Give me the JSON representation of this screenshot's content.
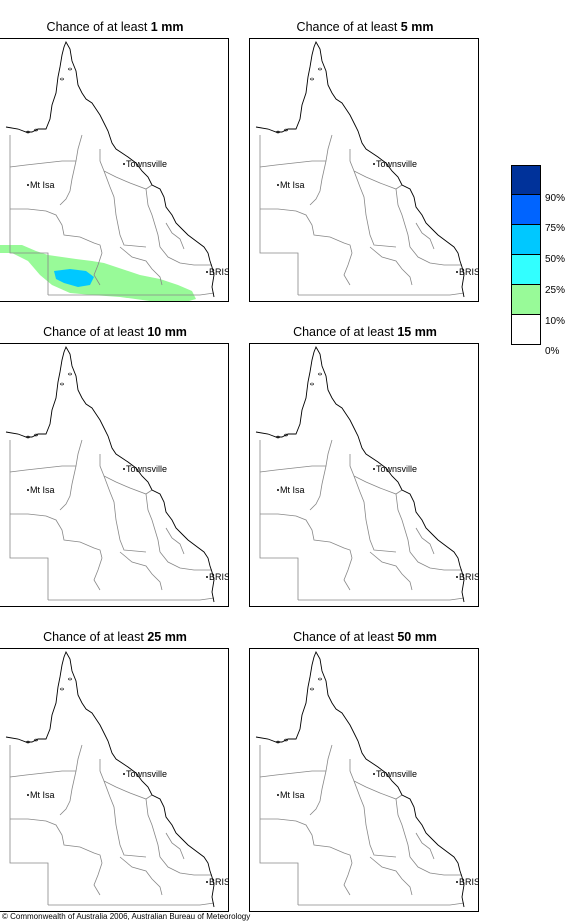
{
  "panels": [
    {
      "title_prefix": "Chance of at least ",
      "title_value": "1 mm",
      "has_rain": true
    },
    {
      "title_prefix": "Chance of at least ",
      "title_value": "5 mm",
      "has_rain": false
    },
    {
      "title_prefix": "Chance of at least ",
      "title_value": "10 mm",
      "has_rain": false
    },
    {
      "title_prefix": "Chance of at least ",
      "title_value": "15 mm",
      "has_rain": false
    },
    {
      "title_prefix": "Chance of at least ",
      "title_value": "25 mm",
      "has_rain": false
    },
    {
      "title_prefix": "Chance of at least ",
      "title_value": "50 mm",
      "has_rain": false
    }
  ],
  "places": {
    "townsville": "Townsville",
    "mt_isa": "Mt Isa",
    "bris": "BRIS"
  },
  "legend": {
    "swatches": [
      "#00329a",
      "#0064ff",
      "#00c8ff",
      "#32ffff",
      "#98fa98",
      "#ffffff"
    ],
    "labels": [
      "90%",
      "75%",
      "50%",
      "25%",
      "10%",
      "0%"
    ]
  },
  "copyright": "© Commonwealth of Australia 2006, Australian Bureau of Meteorology"
}
